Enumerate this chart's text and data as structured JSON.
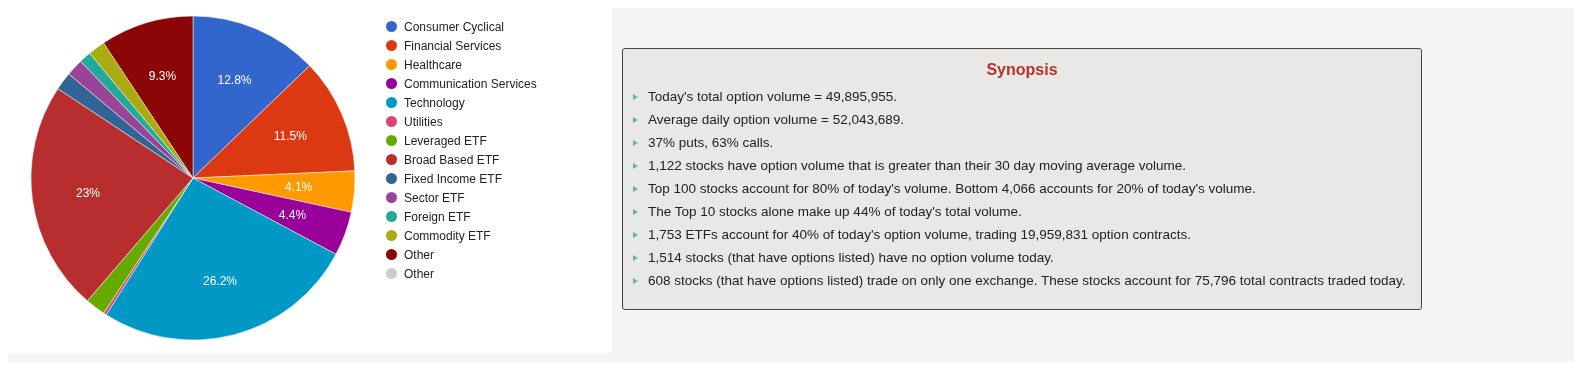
{
  "chart_data": [
    {
      "type": "pie",
      "categories": [
        "Consumer Cyclical",
        "Financial Services",
        "Healthcare",
        "Communication Services",
        "Technology",
        "Utilities",
        "Leveraged ETF",
        "Broad Based ETF",
        "Fixed Income ETF",
        "Sector ETF",
        "Foreign ETF",
        "Commodity ETF",
        "Other",
        "Other"
      ],
      "values": [
        12.8,
        11.5,
        4.1,
        4.4,
        26.2,
        0.3,
        2.0,
        23,
        1.8,
        1.7,
        1.2,
        1.7,
        9.3,
        0
      ],
      "value_labels": [
        "12.8%",
        "11.5%",
        "4.1%",
        "4.4%",
        "26.2%",
        null,
        null,
        "23%",
        null,
        null,
        null,
        null,
        "9.3%",
        null
      ],
      "colors": [
        "#3366cc",
        "#dc3912",
        "#ff9900",
        "#990099",
        "#0099c6",
        "#dd4477",
        "#66aa00",
        "#b82e2e",
        "#316395",
        "#994499",
        "#22aa99",
        "#aaaa11",
        "#8b0707",
        "#cccccc"
      ],
      "legend": "right"
    },
    {
      "type": "other",
      "title": "Synopsis",
      "annotations": [
        "Today's total option volume = 49,895,955.",
        "Average daily option volume = 52,043,689.",
        "37% puts, 63% calls.",
        "1,122 stocks have option volume that is greater than their 30 day moving average volume.",
        "Top 100 stocks account for 80% of today's volume. Bottom 4,066 accounts for 20% of today's volume.",
        "The Top 10 stocks alone make up 44% of today's total volume.",
        "1,753 ETFs account for 40% of today's option volume, trading 19,959,831 option contracts.",
        "1,514 stocks (that have options listed) have no option volume today.",
        "608 stocks (that have options listed) trade on only one exchange. These stocks account for 75,796 total contracts traded today."
      ]
    }
  ]
}
